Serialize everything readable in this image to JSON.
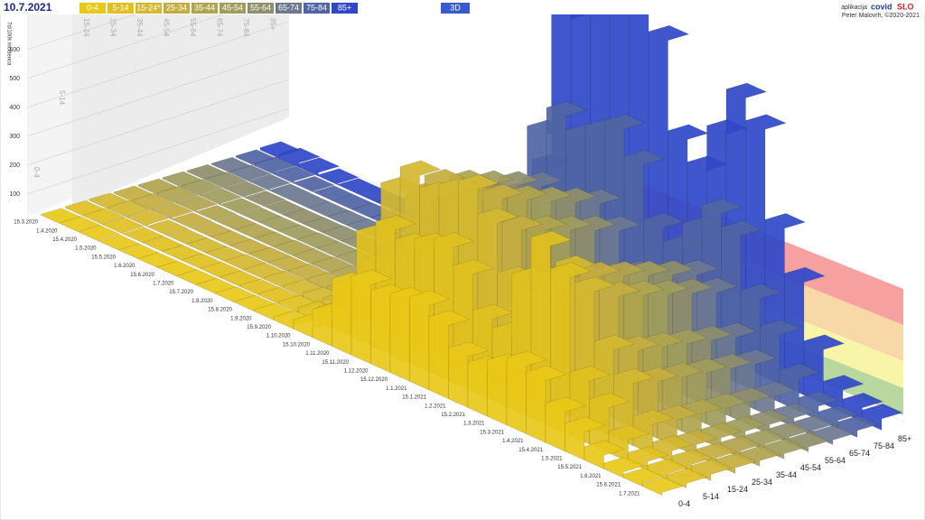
{
  "header": {
    "date": "10.7.2021",
    "mode": "3D",
    "app_prefix": "aplikacija",
    "app_name_a": "covid",
    "app_name_b": "SLO",
    "author": "Peter Malovrh, ©2020-2021"
  },
  "chart_data": {
    "type": "bar3d",
    "y_label": "7d/100k incidenca",
    "ylim": [
      0,
      600
    ],
    "yticks": [
      100,
      200,
      300,
      400,
      500,
      600
    ],
    "legend_labels": [
      "0-4",
      "5-14",
      "15-24*",
      "25-34",
      "35-44",
      "45-54",
      "55-64",
      "65-74",
      "75-84",
      "85+"
    ],
    "back_wall_labels": [
      "15-24",
      "25-34",
      "35-44",
      "45-54",
      "55-64",
      "65-74",
      "75-84",
      "85+"
    ],
    "left_wall_labels": [
      "5-14",
      "0-4"
    ],
    "categories": [
      "15.3.2020",
      "1.4.2020",
      "15.4.2020",
      "1.5.2020",
      "15.5.2020",
      "1.6.2020",
      "15.6.2020",
      "1.7.2020",
      "15.7.2020",
      "1.8.2020",
      "15.8.2020",
      "1.9.2020",
      "15.9.2020",
      "1.10.2020",
      "15.10.2020",
      "1.11.2020",
      "15.11.2020",
      "1.12.2020",
      "15.12.2020",
      "1.1.2021",
      "15.1.2021",
      "1.2.2021",
      "15.2.2021",
      "1.3.2021",
      "15.3.2021",
      "1.4.2021",
      "15.4.2021",
      "1.5.2021",
      "15.5.2021",
      "1.6.2021",
      "15.6.2021",
      "1.7.2021"
    ],
    "series": [
      {
        "name": "0-4",
        "color": "#e8c818",
        "values": [
          2,
          5,
          4,
          1,
          0,
          0,
          1,
          2,
          2,
          4,
          5,
          8,
          15,
          40,
          125,
          300,
          350,
          325,
          350,
          375,
          325,
          225,
          200,
          250,
          300,
          275,
          175,
          125,
          60,
          25,
          15,
          12
        ]
      },
      {
        "name": "5-14",
        "color": "#e0c020",
        "values": [
          4,
          8,
          6,
          2,
          1,
          1,
          2,
          4,
          4,
          6,
          8,
          12,
          24,
          64,
          200,
          480,
          560,
          520,
          560,
          600,
          520,
          360,
          320,
          600,
          800,
          700,
          280,
          200,
          96,
          40,
          24,
          20
        ]
      },
      {
        "name": "15-24",
        "color": "#d4b830",
        "values": [
          6,
          11,
          9,
          3,
          1,
          1,
          2,
          6,
          6,
          9,
          11,
          17,
          33,
          88,
          275,
          660,
          770,
          715,
          770,
          825,
          715,
          495,
          440,
          550,
          660,
          605,
          385,
          275,
          132,
          55,
          33,
          28
        ]
      },
      {
        "name": "25-34",
        "color": "#c4ad40",
        "values": [
          5,
          10,
          8,
          3,
          1,
          1,
          2,
          5,
          5,
          8,
          10,
          15,
          30,
          80,
          250,
          600,
          700,
          650,
          700,
          750,
          650,
          450,
          400,
          500,
          600,
          550,
          350,
          250,
          120,
          50,
          30,
          25
        ]
      },
      {
        "name": "35-44",
        "color": "#b0a44e",
        "values": [
          5,
          10,
          8,
          3,
          1,
          1,
          2,
          5,
          5,
          8,
          10,
          14,
          29,
          76,
          238,
          570,
          665,
          618,
          665,
          713,
          618,
          428,
          380,
          475,
          570,
          523,
          333,
          238,
          114,
          48,
          29,
          24
        ]
      },
      {
        "name": "45-54",
        "color": "#a09c5c",
        "values": [
          5,
          9,
          7,
          3,
          1,
          1,
          2,
          5,
          5,
          7,
          9,
          14,
          27,
          72,
          225,
          540,
          630,
          585,
          630,
          675,
          585,
          405,
          360,
          450,
          540,
          495,
          315,
          225,
          108,
          45,
          27,
          23
        ]
      },
      {
        "name": "55-64",
        "color": "#8e8e6c",
        "values": [
          4,
          9,
          7,
          3,
          1,
          1,
          2,
          4,
          4,
          7,
          9,
          13,
          26,
          68,
          213,
          510,
          595,
          553,
          595,
          638,
          553,
          383,
          340,
          425,
          510,
          468,
          298,
          213,
          102,
          43,
          26,
          21
        ]
      },
      {
        "name": "65-74",
        "color": "#6c7890",
        "values": [
          4,
          8,
          6,
          2,
          1,
          1,
          2,
          4,
          4,
          6,
          8,
          12,
          24,
          64,
          200,
          480,
          560,
          520,
          560,
          600,
          520,
          360,
          320,
          400,
          480,
          440,
          280,
          200,
          96,
          40,
          24,
          20
        ]
      },
      {
        "name": "75-84",
        "color": "#5064a4",
        "values": [
          6,
          12,
          10,
          4,
          1,
          1,
          2,
          6,
          6,
          10,
          12,
          18,
          36,
          96,
          300,
          720,
          840,
          780,
          840,
          900,
          780,
          540,
          480,
          600,
          720,
          660,
          420,
          300,
          144,
          60,
          36,
          30
        ]
      },
      {
        "name": "85+",
        "color": "#2f48c8",
        "values": [
          10,
          20,
          16,
          6,
          2,
          2,
          4,
          10,
          10,
          16,
          20,
          30,
          60,
          160,
          500,
          1200,
          1400,
          1300,
          1400,
          1500,
          1300,
          900,
          800,
          1000,
          1200,
          1100,
          700,
          500,
          240,
          100,
          60,
          50
        ]
      }
    ]
  }
}
